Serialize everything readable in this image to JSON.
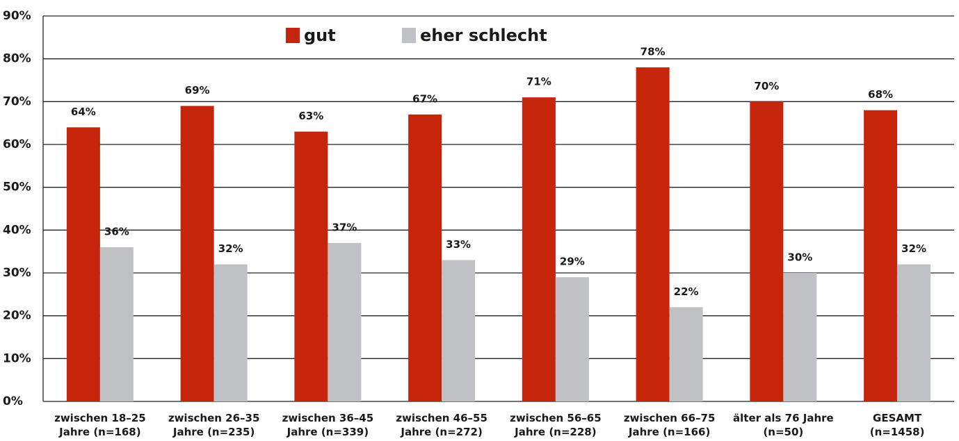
{
  "chart_data": {
    "type": "bar",
    "categories": [
      "zwischen 18–25\nJahre (n=168)",
      "zwischen 26–35\nJahre (n=235)",
      "zwischen 36–45\nJahre (n=339)",
      "zwischen 46–55\nJahre (n=272)",
      "zwischen 56–65\nJahre (n=228)",
      "zwischen 66–75\nJahre (n=166)",
      "älter als 76 Jahre\n(n=50)",
      "GESAMT\n(n=1458)"
    ],
    "series": [
      {
        "name": "gut",
        "color": "#c4250b",
        "values": [
          64,
          69,
          63,
          67,
          71,
          78,
          70,
          68
        ],
        "value_labels": [
          "64%",
          "69%",
          "63%",
          "67%",
          "71%",
          "78%",
          "70%",
          "68%"
        ]
      },
      {
        "name": "eher schlecht",
        "color": "#c0c1c5",
        "values": [
          36,
          32,
          37,
          33,
          29,
          22,
          30,
          32
        ],
        "value_labels": [
          "36%",
          "32%",
          "37%",
          "33%",
          "29%",
          "22%",
          "30%",
          "32%"
        ]
      }
    ],
    "ylim": [
      0,
      90
    ],
    "yticks": [
      {
        "value": 0,
        "label": "0%"
      },
      {
        "value": 10,
        "label": "10%"
      },
      {
        "value": 20,
        "label": "20%"
      },
      {
        "value": 30,
        "label": "30%"
      },
      {
        "value": 40,
        "label": "40%"
      },
      {
        "value": 50,
        "label": "50%"
      },
      {
        "value": 60,
        "label": "60%"
      },
      {
        "value": 70,
        "label": "70%"
      },
      {
        "value": 80,
        "label": "80%"
      },
      {
        "value": 90,
        "label": "90%"
      }
    ],
    "grid": true
  }
}
